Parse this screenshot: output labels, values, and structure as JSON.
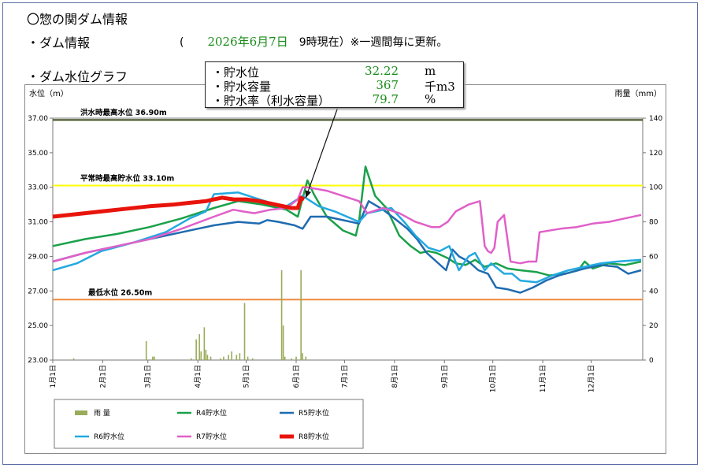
{
  "header": {
    "title": "〇惣の関ダム情報",
    "dam_info_label": "・ダム情報",
    "paren_open": "(",
    "date": "2026年6月7日",
    "time_note": "9時現在）※一週間毎に更新。",
    "graph_heading": "・ダム水位グラフ"
  },
  "info_box": {
    "rows": [
      {
        "label": "・貯水位",
        "value": "32.22",
        "unit": "m"
      },
      {
        "label": "・貯水容量",
        "value": "367",
        "unit": "千m3"
      },
      {
        "label": "・貯水率（利水容量）",
        "value": "79.7",
        "unit": "%"
      }
    ]
  },
  "colors": {
    "rain": "#9aab5a",
    "r4": "#1aa14a",
    "r5": "#1f6bb0",
    "r6": "#23a9e1",
    "r7": "#e060c8",
    "r8": "#e8140c",
    "flood_line": "#3f4f1f",
    "normal_line": "#ffff00",
    "low_line": "#f0883e"
  },
  "chart_data": {
    "type": "line",
    "y_left_label": "水位（m）",
    "y_right_label": "雨量（mm）",
    "y_left_range": [
      23,
      37
    ],
    "y_left_ticks": [
      "37.00",
      "35.00",
      "33.00",
      "31.00",
      "29.00",
      "27.00",
      "25.00",
      "23.00"
    ],
    "y_right_range": [
      0,
      140
    ],
    "y_right_ticks": [
      "140",
      "120",
      "100",
      "80",
      "60",
      "40",
      "20",
      "0"
    ],
    "x_range_days": [
      0,
      366
    ],
    "x_ticks": [
      {
        "label": "1月1日",
        "day": 0
      },
      {
        "label": "2月1日",
        "day": 31
      },
      {
        "label": "3月1日",
        "day": 59
      },
      {
        "label": "4月1日",
        "day": 90
      },
      {
        "label": "5月1日",
        "day": 120
      },
      {
        "label": "6月1日",
        "day": 151
      },
      {
        "label": "7月1日",
        "day": 181
      },
      {
        "label": "8月1日",
        "day": 212
      },
      {
        "label": "9月1日",
        "day": 243
      },
      {
        "label": "10月1日",
        "day": 273
      },
      {
        "label": "11月1日",
        "day": 304
      },
      {
        "label": "12月1日",
        "day": 334
      }
    ],
    "reference_lines": [
      {
        "label": "洪水時最高水位 36.90m",
        "value": 36.9,
        "color": "#3f4f1f"
      },
      {
        "label": "平常時最高貯水位 33.10m",
        "value": 33.1,
        "color": "#ffff00"
      },
      {
        "label": "最低水位 26.50m",
        "value": 26.5,
        "color": "#f0883e"
      }
    ],
    "rain_day_mm": [
      [
        13,
        1
      ],
      [
        58,
        11
      ],
      [
        62,
        2
      ],
      [
        63,
        2
      ],
      [
        86,
        1
      ],
      [
        89,
        12
      ],
      [
        91,
        15
      ],
      [
        92,
        5
      ],
      [
        94,
        19
      ],
      [
        95,
        6
      ],
      [
        96,
        3
      ],
      [
        98,
        2
      ],
      [
        104,
        1
      ],
      [
        106,
        2
      ],
      [
        109,
        3
      ],
      [
        111,
        5
      ],
      [
        114,
        3
      ],
      [
        116,
        4
      ],
      [
        119,
        33
      ],
      [
        121,
        2
      ],
      [
        124,
        1
      ],
      [
        142,
        52
      ],
      [
        143,
        20
      ],
      [
        144,
        2
      ],
      [
        148,
        1
      ],
      [
        151,
        2
      ],
      [
        154,
        52
      ],
      [
        155,
        4
      ],
      [
        157,
        2
      ]
    ],
    "series": [
      {
        "name": "R4貯水位",
        "color": "#1aa14a",
        "width": 2.5,
        "points": [
          [
            0,
            29.6
          ],
          [
            20,
            30.0
          ],
          [
            40,
            30.3
          ],
          [
            60,
            30.7
          ],
          [
            80,
            31.2
          ],
          [
            100,
            31.8
          ],
          [
            115,
            32.2
          ],
          [
            130,
            32.0
          ],
          [
            145,
            31.7
          ],
          [
            152,
            31.3
          ],
          [
            158,
            33.4
          ],
          [
            162,
            32.6
          ],
          [
            170,
            31.3
          ],
          [
            180,
            30.5
          ],
          [
            188,
            30.2
          ],
          [
            190,
            31.0
          ],
          [
            194,
            34.2
          ],
          [
            200,
            32.5
          ],
          [
            207,
            31.8
          ],
          [
            215,
            30.2
          ],
          [
            222,
            29.6
          ],
          [
            228,
            29.2
          ],
          [
            233,
            29.3
          ],
          [
            238,
            29.2
          ],
          [
            245,
            28.9
          ],
          [
            250,
            28.6
          ],
          [
            256,
            28.5
          ],
          [
            262,
            28.8
          ],
          [
            268,
            28.4
          ],
          [
            275,
            28.6
          ],
          [
            282,
            28.3
          ],
          [
            290,
            28.2
          ],
          [
            300,
            28.1
          ],
          [
            308,
            27.9
          ],
          [
            318,
            28.0
          ],
          [
            326,
            28.2
          ],
          [
            330,
            28.7
          ],
          [
            335,
            28.3
          ],
          [
            345,
            28.6
          ],
          [
            355,
            28.5
          ],
          [
            365,
            28.7
          ]
        ]
      },
      {
        "name": "R5貯水位",
        "color": "#1f6bb0",
        "width": 2.5,
        "points": [
          [
            0,
            28.7
          ],
          [
            20,
            29.2
          ],
          [
            40,
            29.6
          ],
          [
            60,
            30.0
          ],
          [
            80,
            30.4
          ],
          [
            100,
            30.8
          ],
          [
            115,
            31.0
          ],
          [
            128,
            30.9
          ],
          [
            133,
            31.1
          ],
          [
            140,
            31.0
          ],
          [
            150,
            30.8
          ],
          [
            155,
            30.6
          ],
          [
            160,
            31.3
          ],
          [
            170,
            31.3
          ],
          [
            180,
            31.1
          ],
          [
            190,
            30.9
          ],
          [
            196,
            32.2
          ],
          [
            205,
            31.7
          ],
          [
            212,
            31.2
          ],
          [
            220,
            30.6
          ],
          [
            226,
            30.0
          ],
          [
            232,
            29.2
          ],
          [
            238,
            28.7
          ],
          [
            244,
            28.2
          ],
          [
            248,
            29.4
          ],
          [
            252,
            29.0
          ],
          [
            258,
            28.7
          ],
          [
            264,
            28.2
          ],
          [
            270,
            28.0
          ],
          [
            275,
            27.2
          ],
          [
            282,
            27.1
          ],
          [
            290,
            26.9
          ],
          [
            298,
            27.2
          ],
          [
            306,
            27.6
          ],
          [
            314,
            27.9
          ],
          [
            322,
            28.1
          ],
          [
            330,
            28.3
          ],
          [
            340,
            28.5
          ],
          [
            350,
            28.4
          ],
          [
            357,
            28.0
          ],
          [
            365,
            28.2
          ]
        ]
      },
      {
        "name": "R6貯水位",
        "color": "#23a9e1",
        "width": 2.5,
        "points": [
          [
            0,
            28.2
          ],
          [
            15,
            28.6
          ],
          [
            30,
            29.3
          ],
          [
            50,
            29.8
          ],
          [
            70,
            30.4
          ],
          [
            85,
            31.2
          ],
          [
            95,
            31.6
          ],
          [
            100,
            32.6
          ],
          [
            115,
            32.7
          ],
          [
            125,
            32.4
          ],
          [
            135,
            32.1
          ],
          [
            145,
            31.9
          ],
          [
            155,
            32.5
          ],
          [
            165,
            31.9
          ],
          [
            175,
            31.6
          ],
          [
            185,
            31.2
          ],
          [
            190,
            31.0
          ],
          [
            195,
            31.5
          ],
          [
            210,
            31.8
          ],
          [
            218,
            31.0
          ],
          [
            225,
            30.2
          ],
          [
            233,
            29.5
          ],
          [
            240,
            29.3
          ],
          [
            246,
            29.6
          ],
          [
            252,
            28.2
          ],
          [
            258,
            29.0
          ],
          [
            262,
            29.2
          ],
          [
            268,
            28.2
          ],
          [
            272,
            28.6
          ],
          [
            280,
            28.0
          ],
          [
            285,
            28.0
          ],
          [
            290,
            27.6
          ],
          [
            300,
            27.5
          ],
          [
            310,
            27.9
          ],
          [
            320,
            28.2
          ],
          [
            330,
            28.4
          ],
          [
            340,
            28.6
          ],
          [
            350,
            28.7
          ],
          [
            365,
            28.8
          ]
        ]
      },
      {
        "name": "R7貯水位",
        "color": "#e060c8",
        "width": 2.5,
        "points": [
          [
            0,
            28.7
          ],
          [
            20,
            29.2
          ],
          [
            40,
            29.6
          ],
          [
            60,
            30.0
          ],
          [
            80,
            30.6
          ],
          [
            100,
            31.3
          ],
          [
            112,
            31.7
          ],
          [
            118,
            31.6
          ],
          [
            125,
            31.5
          ],
          [
            135,
            31.7
          ],
          [
            145,
            31.8
          ],
          [
            152,
            32.3
          ],
          [
            155,
            33.0
          ],
          [
            158,
            33.0
          ],
          [
            170,
            32.8
          ],
          [
            180,
            32.5
          ],
          [
            190,
            32.2
          ],
          [
            195,
            31.5
          ],
          [
            205,
            31.8
          ],
          [
            215,
            31.5
          ],
          [
            225,
            31.0
          ],
          [
            235,
            30.7
          ],
          [
            240,
            30.7
          ],
          [
            245,
            31.0
          ],
          [
            250,
            31.6
          ],
          [
            258,
            32.0
          ],
          [
            265,
            32.2
          ],
          [
            268,
            29.6
          ],
          [
            270,
            29.3
          ],
          [
            272,
            29.2
          ],
          [
            274,
            29.5
          ],
          [
            276,
            31.0
          ],
          [
            280,
            31.4
          ],
          [
            284,
            28.7
          ],
          [
            290,
            28.6
          ],
          [
            295,
            28.7
          ],
          [
            300,
            28.7
          ],
          [
            302,
            30.4
          ],
          [
            315,
            30.6
          ],
          [
            325,
            30.7
          ],
          [
            335,
            30.9
          ],
          [
            345,
            31.0
          ],
          [
            355,
            31.2
          ],
          [
            365,
            31.4
          ]
        ]
      },
      {
        "name": "R8貯水位",
        "color": "#e8140c",
        "width": 5,
        "points": [
          [
            0,
            31.3
          ],
          [
            20,
            31.5
          ],
          [
            40,
            31.7
          ],
          [
            60,
            31.9
          ],
          [
            75,
            32.0
          ],
          [
            85,
            32.1
          ],
          [
            95,
            32.2
          ],
          [
            100,
            32.3
          ],
          [
            105,
            32.4
          ],
          [
            112,
            32.3
          ],
          [
            120,
            32.3
          ],
          [
            128,
            32.2
          ],
          [
            138,
            32.0
          ],
          [
            148,
            31.8
          ],
          [
            152,
            31.8
          ],
          [
            154,
            32.4
          ],
          [
            156,
            32.3
          ]
        ]
      }
    ],
    "legend": [
      "雨 量",
      "R4貯水位",
      "R5貯水位",
      "R6貯水位",
      "R7貯水位",
      "R8貯水位"
    ]
  }
}
